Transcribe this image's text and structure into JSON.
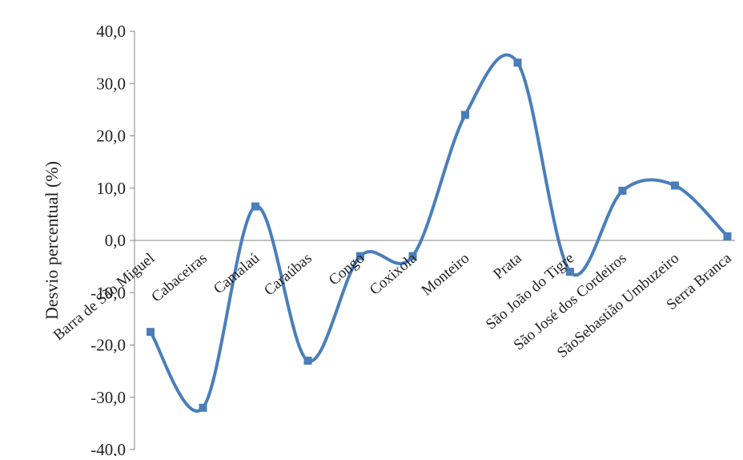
{
  "chart_data": {
    "type": "line",
    "smooth": true,
    "title": "",
    "xlabel": "",
    "ylabel": "Desvio percentual (%)",
    "ylim": [
      -40,
      40
    ],
    "ytick_step": 10,
    "ytick_labels": [
      "40,0",
      "30,0",
      "20,0",
      "10,0",
      "0,0",
      "-10,0",
      "-20,0",
      "-30,0",
      "-40,0"
    ],
    "grid": false,
    "legend": "none",
    "categories": [
      "Barra de São Miguel",
      "Cabaceiras",
      "Camalaú",
      "Caraúbas",
      "Congo",
      "Coxixola",
      "Monteiro",
      "Prata",
      "São João do Tigre",
      "São José dos Cordeiros",
      "SãoSebastião Umbuzeiro",
      "Serra Branca"
    ],
    "series": [
      {
        "values": [
          -17.5,
          -32.0,
          6.5,
          -23.0,
          -3.0,
          -3.0,
          24.0,
          34.0,
          -6.0,
          9.5,
          10.5,
          0.8
        ],
        "color": "#4A7EBB"
      }
    ],
    "axis_color": "#868686"
  }
}
